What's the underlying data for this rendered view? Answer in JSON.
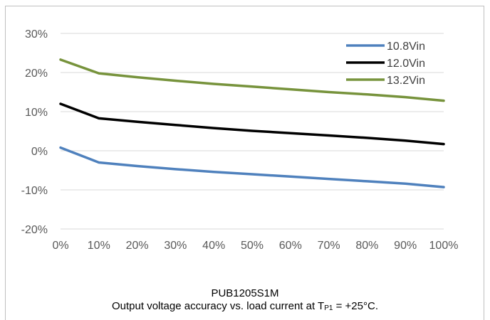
{
  "caption": {
    "model": "PUB1205S1M",
    "line_prefix": "Output voltage accuracy vs. load current at T",
    "line_subscript": "P1",
    "line_suffix": " = +25°C."
  },
  "chart_data": {
    "type": "line",
    "title": "",
    "xlabel": "",
    "ylabel": "",
    "x": [
      "0%",
      "10%",
      "20%",
      "30%",
      "40%",
      "50%",
      "60%",
      "70%",
      "80%",
      "90%",
      "100%"
    ],
    "x_values": [
      0,
      10,
      20,
      30,
      40,
      50,
      60,
      70,
      80,
      90,
      100
    ],
    "xlim": [
      0,
      100
    ],
    "ylim": [
      -20,
      30
    ],
    "y_ticks": [
      -20,
      -10,
      0,
      10,
      20,
      30
    ],
    "y_tick_labels": [
      "-20%",
      "-10%",
      "0%",
      "10%",
      "20%",
      "30%"
    ],
    "grid": "horizontal",
    "legend_position": "top-right",
    "series": [
      {
        "name": "10.8Vin",
        "color": "#4f81bd",
        "values": [
          0.8,
          -3.0,
          -3.9,
          -4.7,
          -5.4,
          -6.0,
          -6.6,
          -7.2,
          -7.8,
          -8.4,
          -9.3
        ]
      },
      {
        "name": "12.0Vin",
        "color": "#000000",
        "values": [
          12.0,
          8.3,
          7.4,
          6.6,
          5.8,
          5.1,
          4.5,
          3.9,
          3.3,
          2.6,
          1.7
        ]
      },
      {
        "name": "13.2Vin",
        "color": "#77933c",
        "values": [
          23.3,
          19.8,
          18.8,
          17.9,
          17.1,
          16.4,
          15.7,
          15.0,
          14.4,
          13.7,
          12.8
        ]
      }
    ]
  }
}
